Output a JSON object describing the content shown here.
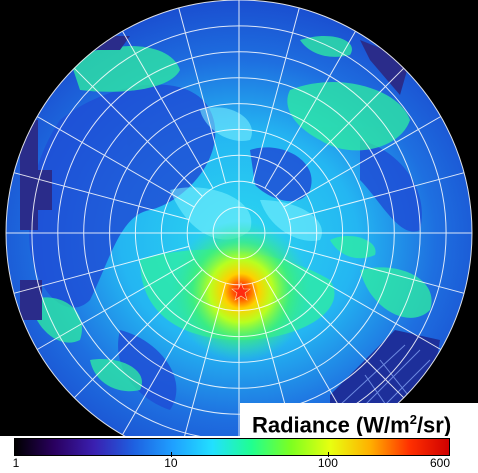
{
  "legend": {
    "title_prefix": "Radiance (W/m",
    "title_sup": "2",
    "title_suffix": "/sr)",
    "ticks": [
      "1",
      "10",
      "100",
      "600"
    ],
    "tick_values": [
      1,
      10,
      100,
      600
    ],
    "scale": "log",
    "range": [
      1,
      600
    ]
  },
  "colors": {
    "background": "#000000",
    "grid": "#ffffff",
    "colormap": [
      "#000000",
      "#2a0060",
      "#3a1fb0",
      "#1e60e0",
      "#1fa0ff",
      "#22e0ff",
      "#20ff90",
      "#7dff20",
      "#e8ff10",
      "#ffb000",
      "#ff3000",
      "#d00000"
    ],
    "hotspot": "#ff2a10"
  },
  "sky_map": {
    "projection": "polar",
    "grid_rings": 9,
    "grid_spokes": 24
  }
}
